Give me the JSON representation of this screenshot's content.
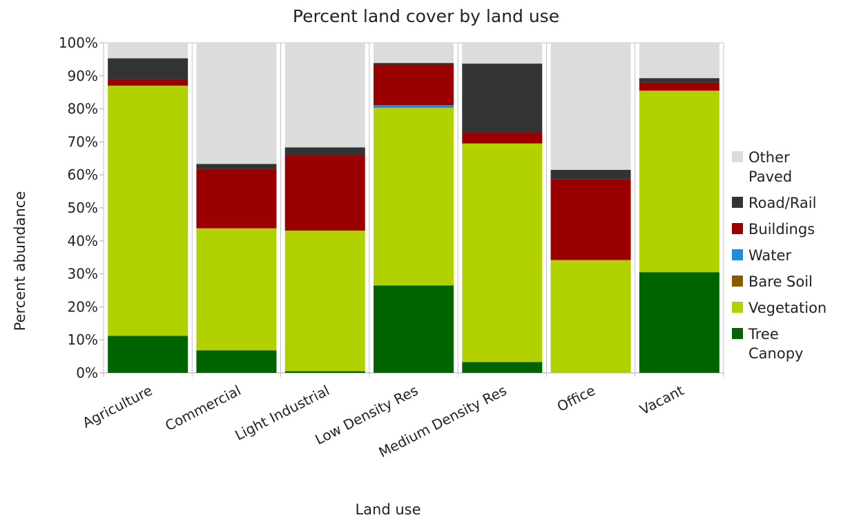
{
  "chart_data": {
    "type": "bar",
    "stacked": true,
    "percent_stacked": true,
    "title": "Percent land cover by land use",
    "xlabel": "Land use",
    "ylabel": "Percent abundance",
    "ylim": [
      0,
      100
    ],
    "y_ticks": [
      "0%",
      "10%",
      "20%",
      "30%",
      "40%",
      "50%",
      "60%",
      "70%",
      "80%",
      "90%",
      "100%"
    ],
    "grid": "vertical",
    "legend_position": "right",
    "categories": [
      "Agriculture",
      "Commercial",
      "Light Industrial",
      "Low Density Res",
      "Medium Density Res",
      "Office",
      "Vacant"
    ],
    "series": [
      {
        "name": "Tree Canopy",
        "legend_lines": [
          "Tree",
          "Canopy"
        ],
        "color": "#006400",
        "values": [
          11.2,
          6.8,
          0.5,
          26.5,
          3.3,
          0.0,
          30.5
        ]
      },
      {
        "name": "Vegetation",
        "legend_lines": [
          "Vegetation"
        ],
        "color": "#b1d100",
        "values": [
          75.8,
          37.0,
          42.6,
          53.8,
          66.2,
          34.2,
          55.0
        ]
      },
      {
        "name": "Bare Soil",
        "legend_lines": [
          "Bare Soil"
        ],
        "color": "#8b5a00",
        "values": [
          0.0,
          0.0,
          0.0,
          0.0,
          0.0,
          0.0,
          0.0
        ]
      },
      {
        "name": "Water",
        "legend_lines": [
          "Water"
        ],
        "color": "#1f8ddf",
        "values": [
          0.0,
          0.0,
          0.0,
          0.8,
          0.0,
          0.0,
          0.0
        ]
      },
      {
        "name": "Buildings",
        "legend_lines": [
          "Buildings"
        ],
        "color": "#9b0000",
        "values": [
          2.0,
          18.0,
          22.9,
          12.2,
          3.5,
          24.4,
          2.4
        ]
      },
      {
        "name": "Road/Rail",
        "legend_lines": [
          "Road/Rail"
        ],
        "color": "#333333",
        "values": [
          6.3,
          1.5,
          2.3,
          0.6,
          20.7,
          2.9,
          1.4
        ]
      },
      {
        "name": "Other Paved",
        "legend_lines": [
          "Other",
          "Paved"
        ],
        "color": "#dcdcdc",
        "values": [
          4.7,
          36.7,
          31.7,
          6.1,
          6.3,
          38.5,
          10.7
        ]
      }
    ],
    "colors": {
      "gridline": "#c0c0c0",
      "axis": "#aaaaaa",
      "text": "#222222"
    }
  }
}
